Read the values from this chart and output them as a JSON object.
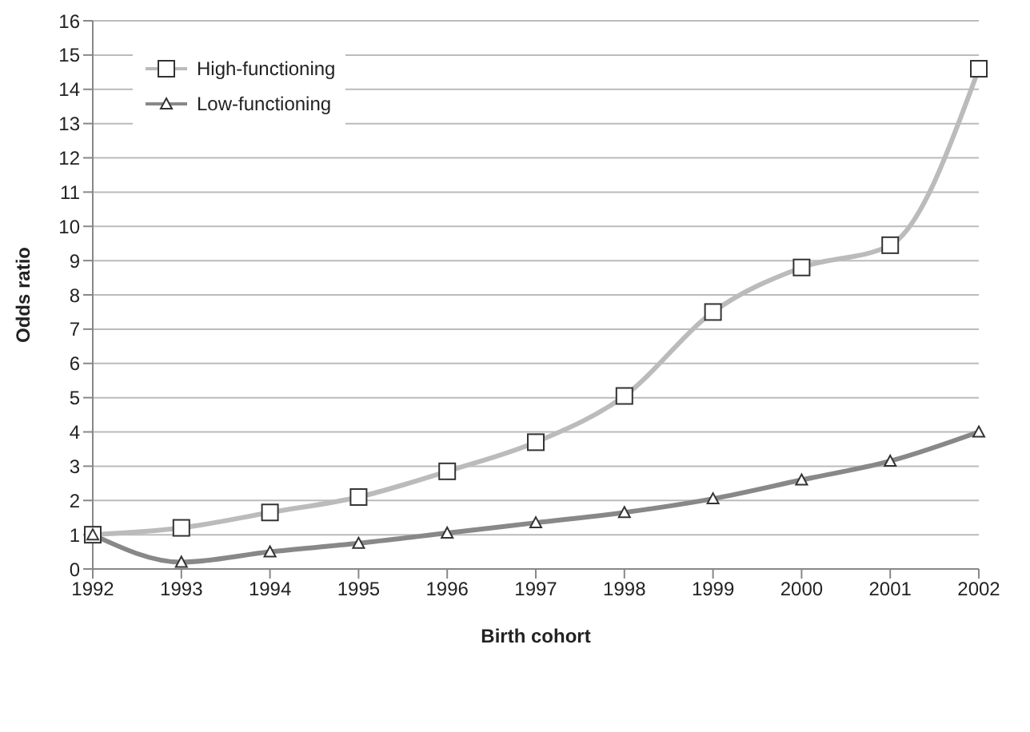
{
  "chart_data": {
    "type": "line",
    "xlabel": "Birth cohort",
    "ylabel": "Odds ratio",
    "categories": [
      "1992",
      "1993",
      "1994",
      "1995",
      "1996",
      "1997",
      "1998",
      "1999",
      "2000",
      "2001",
      "2002"
    ],
    "series": [
      {
        "name": "High-functioning",
        "color": "#bbbbbb",
        "marker": "square",
        "values": [
          1,
          1.2,
          1.65,
          2.1,
          2.85,
          3.7,
          5.05,
          7.5,
          8.8,
          9.45,
          14.6
        ]
      },
      {
        "name": "Low-functioning",
        "color": "#888888",
        "marker": "triangle",
        "values": [
          1,
          0.2,
          0.5,
          0.75,
          1.05,
          1.35,
          1.65,
          2.05,
          2.6,
          3.15,
          4.0
        ]
      }
    ],
    "ylim": [
      0,
      16
    ],
    "yticks": [
      0,
      1,
      2,
      3,
      4,
      5,
      6,
      7,
      8,
      9,
      10,
      11,
      12,
      13,
      14,
      15,
      16
    ],
    "grid": "y",
    "legend": "top left",
    "line_style": "solid"
  }
}
